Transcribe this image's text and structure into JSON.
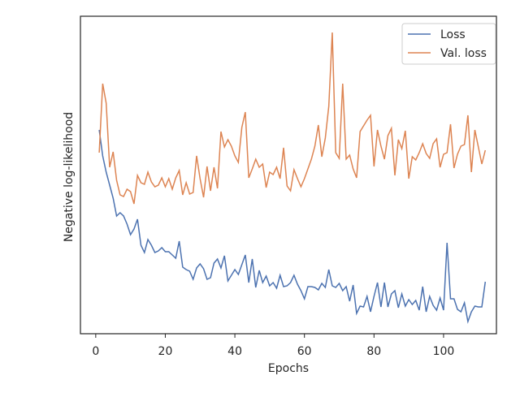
{
  "chart_data": {
    "type": "line",
    "xlabel": "Epochs",
    "ylabel": "Negative log-likelihood",
    "xlim": [
      -4.4,
      115.2
    ],
    "xticks": [
      0,
      20,
      40,
      60,
      80,
      100
    ],
    "ylim": [
      0,
      391
    ],
    "legend": "upper right",
    "x": [
      1,
      2,
      3,
      4,
      5,
      6,
      7,
      8,
      9,
      10,
      11,
      12,
      13,
      14,
      15,
      16,
      17,
      18,
      19,
      20,
      21,
      22,
      23,
      24,
      25,
      26,
      27,
      28,
      29,
      30,
      31,
      32,
      33,
      34,
      35,
      36,
      37,
      38,
      39,
      40,
      41,
      42,
      43,
      44,
      45,
      46,
      47,
      48,
      49,
      50,
      51,
      52,
      53,
      54,
      55,
      56,
      57,
      58,
      59,
      60,
      61,
      62,
      63,
      64,
      65,
      66,
      67,
      68,
      69,
      70,
      71,
      72,
      73,
      74,
      75,
      76,
      77,
      78,
      79,
      80,
      81,
      82,
      83,
      84,
      85,
      86,
      87,
      88,
      89,
      90,
      91,
      92,
      93,
      94,
      95,
      96,
      97,
      98,
      99,
      100,
      101,
      102,
      103,
      104,
      105,
      106,
      107,
      108,
      109,
      110,
      111,
      112
    ],
    "series": [
      {
        "name": "Loss",
        "color": "#4c72b0",
        "values": [
          251,
          219,
          199,
          183,
          167,
          145,
          149,
          145,
          135,
          122,
          129,
          141,
          109,
          100,
          116,
          109,
          100,
          102,
          106,
          101,
          101,
          97,
          93,
          114,
          82,
          79,
          77,
          67,
          81,
          86,
          80,
          67,
          69,
          87,
          92,
          81,
          96,
          65,
          72,
          79,
          73,
          85,
          97,
          63,
          92,
          57,
          78,
          63,
          71,
          59,
          63,
          56,
          72,
          58,
          59,
          63,
          72,
          61,
          53,
          43,
          58,
          58,
          57,
          54,
          62,
          57,
          79,
          59,
          57,
          62,
          53,
          58,
          40,
          60,
          25,
          34,
          33,
          46,
          27,
          46,
          63,
          33,
          63,
          33,
          49,
          53,
          32,
          49,
          34,
          42,
          36,
          41,
          29,
          58,
          27,
          46,
          35,
          29,
          44,
          29,
          112,
          43,
          43,
          30,
          27,
          38,
          15,
          27,
          34,
          33,
          33,
          64
        ]
      },
      {
        "name": "Val. loss",
        "color": "#dd8452",
        "values": [
          223,
          308,
          284,
          205,
          224,
          189,
          171,
          169,
          178,
          175,
          160,
          195,
          186,
          184,
          199,
          187,
          181,
          183,
          192,
          181,
          191,
          178,
          192,
          201,
          171,
          186,
          172,
          174,
          219,
          191,
          168,
          206,
          176,
          205,
          179,
          249,
          230,
          239,
          231,
          219,
          211,
          254,
          273,
          192,
          203,
          215,
          205,
          209,
          180,
          199,
          196,
          205,
          191,
          229,
          182,
          176,
          202,
          191,
          181,
          191,
          203,
          215,
          231,
          257,
          218,
          241,
          280,
          371,
          223,
          216,
          308,
          215,
          220,
          203,
          192,
          249,
          256,
          263,
          269,
          206,
          251,
          231,
          215,
          244,
          253,
          195,
          239,
          228,
          250,
          191,
          218,
          214,
          223,
          234,
          222,
          216,
          234,
          240,
          205,
          221,
          223,
          258,
          204,
          221,
          231,
          233,
          269,
          199,
          251,
          230,
          209,
          226
        ]
      }
    ]
  }
}
